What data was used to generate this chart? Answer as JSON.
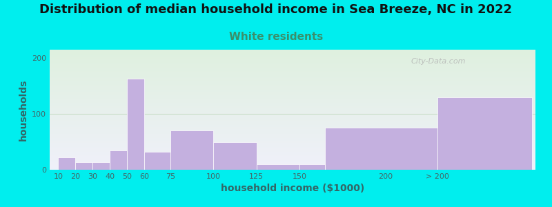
{
  "title": "Distribution of median household income in Sea Breeze, NC in 2022",
  "subtitle": "White residents",
  "xlabel": "household income ($1000)",
  "ylabel": "households",
  "title_fontsize": 13,
  "subtitle_fontsize": 11,
  "subtitle_color": "#3a8f6a",
  "bar_color": "#c4b0df",
  "bar_edgecolor": "#ffffff",
  "bg_color": "#00eeee",
  "plot_bg_top": "#dff0df",
  "plot_bg_bottom": "#f0f0fa",
  "values": [
    22,
    14,
    14,
    35,
    163,
    32,
    70,
    50,
    10,
    10,
    75,
    130
  ],
  "x_lefts": [
    10,
    20,
    30,
    40,
    50,
    60,
    75,
    100,
    125,
    150,
    165,
    230
  ],
  "x_widths": [
    10,
    10,
    10,
    10,
    10,
    15,
    25,
    25,
    25,
    15,
    65,
    55
  ],
  "xtick_positions": [
    10,
    20,
    30,
    40,
    50,
    60,
    75,
    100,
    125,
    150,
    200,
    230
  ],
  "xtick_labels": [
    "10",
    "20",
    "30",
    "40",
    "50",
    "60",
    "75",
    "100",
    "125",
    "150",
    "200",
    "> 200"
  ],
  "yticks": [
    0,
    100,
    200
  ],
  "ylim": [
    0,
    215
  ],
  "xlim": [
    5,
    287
  ],
  "watermark": "City-Data.com",
  "gridline_y": 100,
  "gridline_color": "#c8ddc8",
  "tick_color": "#446666",
  "label_color": "#336666"
}
